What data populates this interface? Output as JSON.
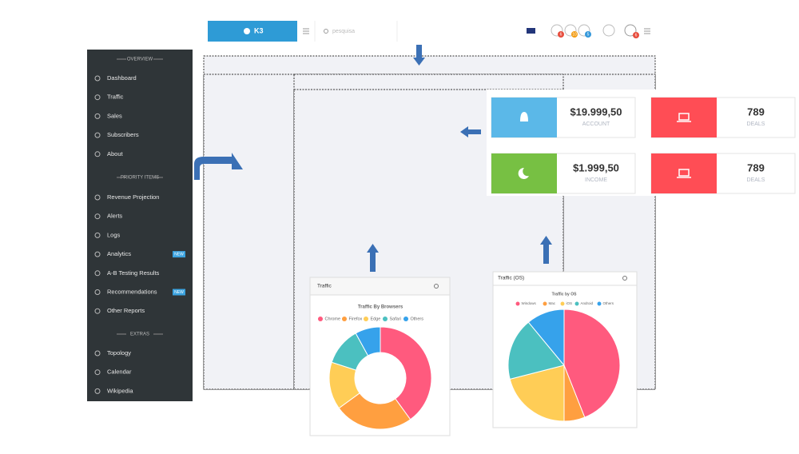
{
  "topbar": {
    "logo": "K3",
    "search": "pesquisa",
    "badges": [
      "6",
      "10",
      "5"
    ],
    "avatar_badge": "6"
  },
  "sidebar": {
    "sections": [
      {
        "title": "OVERVIEW",
        "items": [
          {
            "label": "Dashboard"
          },
          {
            "label": "Traffic"
          },
          {
            "label": "Sales"
          },
          {
            "label": "Subscribers"
          },
          {
            "label": "About"
          }
        ]
      },
      {
        "title": "PRIORITY ITEMS",
        "items": [
          {
            "label": "Revenue Projection"
          },
          {
            "label": "Alerts"
          },
          {
            "label": "Logs"
          },
          {
            "label": "Analytics",
            "badge": "NEW"
          },
          {
            "label": "A-B Testing Results"
          },
          {
            "label": "Recommendations",
            "badge": "NEW"
          },
          {
            "label": "Other Reports"
          }
        ]
      },
      {
        "title": "EXTRAS",
        "items": [
          {
            "label": "Topology"
          },
          {
            "label": "Calendar"
          },
          {
            "label": "Wikipedia"
          }
        ]
      }
    ]
  },
  "cards": [
    {
      "value": "$19.999,50",
      "label": "ACCOUNT"
    },
    {
      "value": "789",
      "label": "DEALS"
    },
    {
      "value": "$1.999,50",
      "label": "INCOME"
    },
    {
      "value": "789",
      "label": "DEALS"
    }
  ],
  "chart_data": [
    {
      "type": "doughnut",
      "panel": "Traffic",
      "title": "Traffic By Browsers",
      "categories": [
        "Chrome",
        "Firefox",
        "Edge",
        "Safari",
        "Others"
      ],
      "values": [
        40,
        25,
        15,
        12,
        8
      ],
      "colors": [
        "#ff5a7e",
        "#ff9f40",
        "#ffcd56",
        "#4bc0c0",
        "#36a2eb"
      ]
    },
    {
      "type": "pie",
      "panel": "Traffic (OS)",
      "title": "Traffic by OS",
      "categories": [
        "Windows",
        "Mac",
        "iOS",
        "Android",
        "Others"
      ],
      "values": [
        44,
        6,
        21,
        18,
        11
      ],
      "colors": [
        "#ff5a7e",
        "#ff9f40",
        "#ffcd56",
        "#4bc0c0",
        "#36a2eb"
      ]
    }
  ]
}
